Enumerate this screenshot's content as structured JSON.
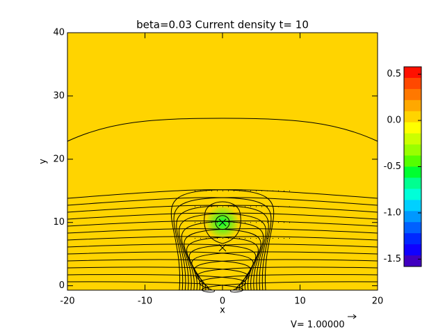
{
  "chart_data": {
    "type": "contour",
    "title": "beta=0.03 Current density t= 10",
    "xlabel": "x",
    "ylabel": "y",
    "xlim": [
      -20,
      20
    ],
    "ylim": [
      -0.7,
      40
    ],
    "xticks": [
      -20,
      -10,
      0,
      10,
      20
    ],
    "yticks": [
      0,
      10,
      20,
      30,
      40
    ],
    "background_value": 0,
    "current": {
      "x": 0,
      "y": 10,
      "radius": 2,
      "peak": -0.6
    },
    "markers": {
      "x": [
        0,
        0
      ],
      "y": [
        10,
        6
      ]
    },
    "colorbar": {
      "lim": [
        -1.58,
        0.58
      ],
      "ticks": [
        0.5,
        {
          "value": 0,
          "label": "0.0"
        },
        -0.5,
        {
          "value": -1,
          "label": "-1.0"
        },
        -1.5
      ],
      "colors": [
        "#ff1000",
        "#ff4800",
        "#ff7800",
        "#ffa800",
        "#ffd400",
        "#ffff00",
        "#ccff00",
        "#99ff00",
        "#55ff00",
        "#00ff30",
        "#00ff90",
        "#00ffd8",
        "#00d0ff",
        "#0098ff",
        "#0060ff",
        "#0028ff",
        "#1000ff",
        "#4000c0"
      ]
    },
    "vector_label": "V= 1.00000"
  }
}
